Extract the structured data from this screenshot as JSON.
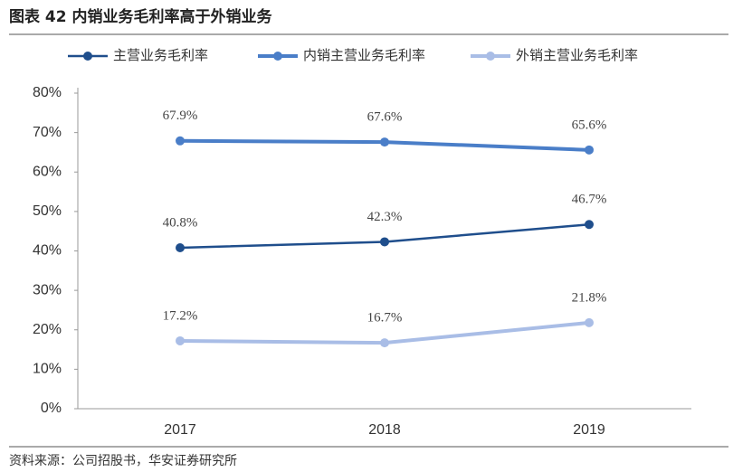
{
  "chart_data": {
    "type": "line",
    "title": "图表 42 内销业务毛利率高于外销业务",
    "source": "资料来源：公司招股书，华安证券研究所",
    "categories": [
      "2017",
      "2018",
      "2019"
    ],
    "series": [
      {
        "name": "主营业务毛利率",
        "color": "#1f4e8c",
        "values": [
          40.8,
          42.3,
          46.7
        ],
        "value_labels": [
          "40.8%",
          "42.3%",
          "46.7%"
        ]
      },
      {
        "name": "内销主营业务毛利率",
        "color": "#4a7ec8",
        "values": [
          67.9,
          67.6,
          65.6
        ],
        "value_labels": [
          "67.9%",
          "67.6%",
          "65.6%"
        ]
      },
      {
        "name": "外销主营业务毛利率",
        "color": "#a9bde6",
        "values": [
          17.2,
          16.7,
          21.8
        ],
        "value_labels": [
          "17.2%",
          "16.7%",
          "21.8%"
        ]
      }
    ],
    "ylim": [
      0,
      80
    ],
    "yticks": [
      {
        "value": 0,
        "label": "0%"
      },
      {
        "value": 10,
        "label": "10%"
      },
      {
        "value": 20,
        "label": "20%"
      },
      {
        "value": 30,
        "label": "30%"
      },
      {
        "value": 40,
        "label": "40%"
      },
      {
        "value": 50,
        "label": "50%"
      },
      {
        "value": 60,
        "label": "60%"
      },
      {
        "value": 70,
        "label": "70%"
      },
      {
        "value": 80,
        "label": "80%"
      }
    ],
    "legend": "top"
  }
}
